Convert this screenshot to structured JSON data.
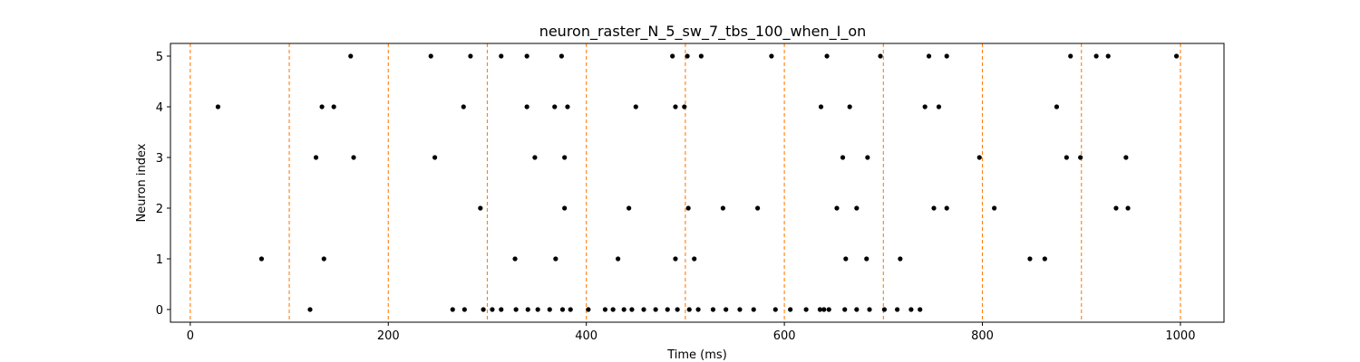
{
  "chart_data": {
    "type": "scatter",
    "title": "neuron_raster_N_5_sw_7_tbs_100_when_I_on",
    "xlabel": "Time (ms)",
    "ylabel": "Neuron index",
    "xlim": [
      -20,
      1044
    ],
    "ylim": [
      -0.25,
      5.25
    ],
    "xticks": [
      0,
      200,
      400,
      600,
      800,
      1000
    ],
    "yticks": [
      0,
      1,
      2,
      3,
      4,
      5
    ],
    "grid": false,
    "marker_color": "#000000",
    "vlines": {
      "x": [
        0,
        100,
        200,
        300,
        400,
        500,
        600,
        700,
        800,
        900,
        1000
      ],
      "color": "#ff7f0e",
      "style": "dashed"
    },
    "series": [
      {
        "y": 0,
        "x": [
          121,
          265,
          277,
          296,
          305,
          314,
          329,
          341,
          351,
          363,
          376,
          384,
          402,
          419,
          427,
          438,
          446,
          458,
          470,
          482,
          492,
          504,
          513,
          528,
          541,
          555,
          569,
          591,
          606,
          622,
          636,
          640,
          645,
          661,
          673,
          686,
          701,
          714,
          728,
          737
        ]
      },
      {
        "y": 1,
        "x": [
          72,
          135,
          328,
          369,
          432,
          490,
          509,
          662,
          683,
          717,
          848,
          863
        ]
      },
      {
        "y": 2,
        "x": [
          293,
          378,
          443,
          503,
          538,
          573,
          653,
          673,
          751,
          764,
          812,
          935,
          947
        ]
      },
      {
        "y": 3,
        "x": [
          127,
          165,
          247,
          348,
          378,
          659,
          684,
          797,
          885,
          899,
          945
        ]
      },
      {
        "y": 4,
        "x": [
          28,
          133,
          145,
          276,
          340,
          368,
          381,
          450,
          490,
          499,
          637,
          666,
          742,
          756,
          875
        ]
      },
      {
        "y": 5,
        "x": [
          162,
          243,
          283,
          314,
          340,
          375,
          487,
          502,
          516,
          587,
          643,
          697,
          746,
          764,
          889,
          915,
          927,
          996
        ]
      }
    ]
  }
}
